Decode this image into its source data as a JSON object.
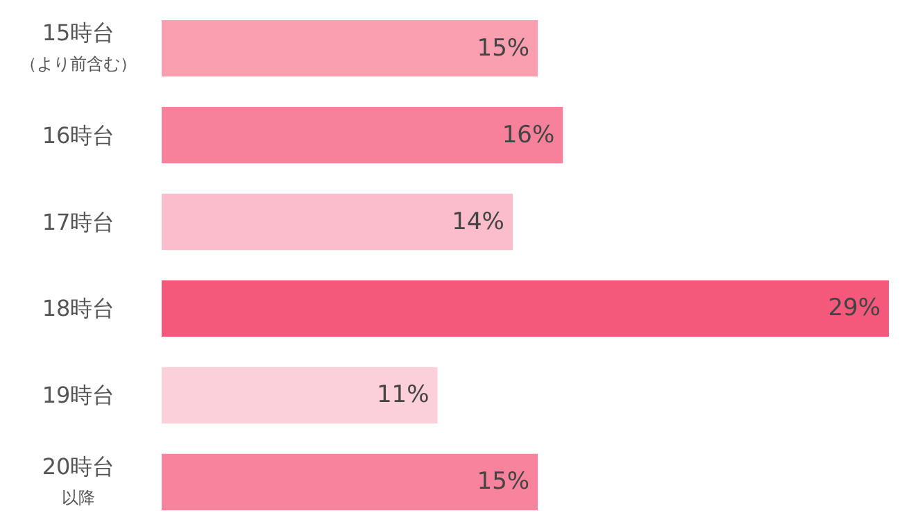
{
  "chart_data": {
    "type": "bar",
    "orientation": "horizontal",
    "categories": [
      "15時台（より前含む）",
      "16時台",
      "17時台",
      "18時台",
      "19時台",
      "20時台以降"
    ],
    "values": [
      15,
      16,
      14,
      29,
      11,
      15
    ],
    "colors": [
      "#f99fb0",
      "#f7819a",
      "#fbbccb",
      "#f4587a",
      "#fcd0da",
      "#f7849c"
    ],
    "value_labels": [
      "15%",
      "16%",
      "14%",
      "29%",
      "11%",
      "15%"
    ]
  }
}
